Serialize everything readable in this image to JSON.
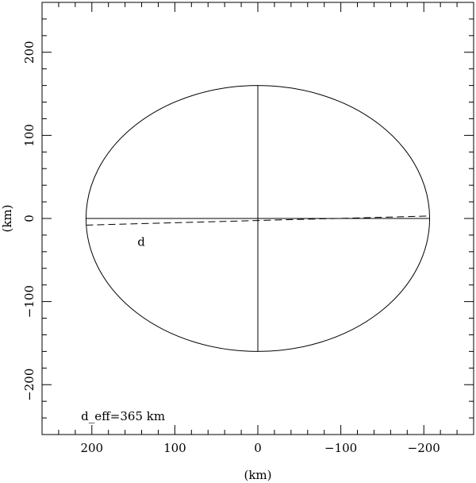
{
  "chart_data": {
    "type": "line",
    "xlabel": "(km)",
    "ylabel": "(km)",
    "xlim": [
      260,
      -260
    ],
    "ylim": [
      -260,
      260
    ],
    "x_ticks": [
      {
        "value": 200,
        "label": "200"
      },
      {
        "value": 100,
        "label": "100"
      },
      {
        "value": 0,
        "label": "0"
      },
      {
        "value": -100,
        "label": "−100"
      },
      {
        "value": -200,
        "label": "−200"
      }
    ],
    "y_ticks": [
      {
        "value": 200,
        "label": "200"
      },
      {
        "value": 100,
        "label": "100"
      },
      {
        "value": 0,
        "label": "0"
      },
      {
        "value": -100,
        "label": "−100"
      },
      {
        "value": -200,
        "label": "−200"
      }
    ],
    "minor_tick_step": 20,
    "grid": false,
    "ellipse": {
      "center": [
        0,
        0
      ],
      "semi_major_x": 207,
      "semi_minor_y": 160
    },
    "major_axis_line": {
      "x": [
        207,
        -207
      ],
      "y": [
        0,
        0
      ]
    },
    "minor_axis_line": {
      "x": [
        0,
        0
      ],
      "y": [
        160,
        -160
      ]
    },
    "chord": {
      "x": [
        207,
        -207
      ],
      "y": [
        -8,
        3
      ],
      "style": "dashed"
    },
    "annotations": [
      {
        "text": "d",
        "x": 145,
        "y": -28
      },
      {
        "text": "d_eff=365 km",
        "x": 213,
        "y": -238
      }
    ]
  }
}
